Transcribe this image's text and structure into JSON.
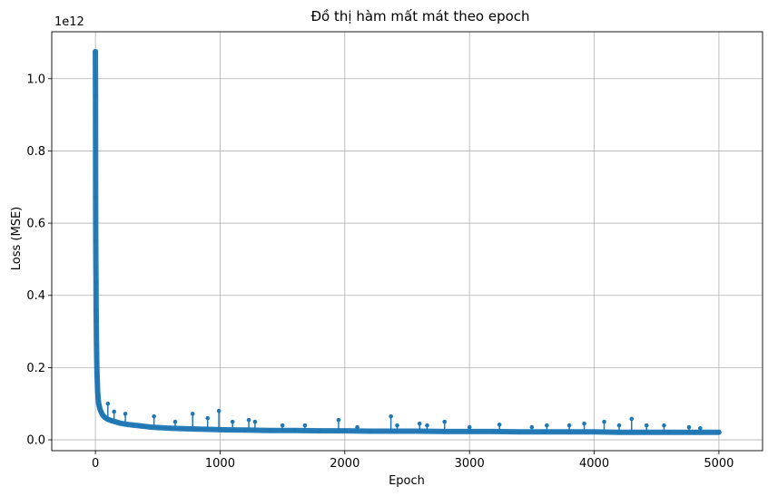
{
  "chart_data": {
    "type": "line",
    "title": "Đồ thị hàm mất mát theo epoch",
    "xlabel": "Epoch",
    "ylabel": "Loss (MSE)",
    "y_offset_label": "1e12",
    "xlim": [
      -350,
      5350
    ],
    "ylim": [
      -0.03,
      1.13
    ],
    "x_ticks": [
      0,
      1000,
      2000,
      3000,
      4000,
      5000
    ],
    "x_tick_labels": [
      "0",
      "1000",
      "2000",
      "3000",
      "4000",
      "5000"
    ],
    "y_ticks": [
      0.0,
      0.2,
      0.4,
      0.6,
      0.8,
      1.0
    ],
    "y_tick_labels": [
      "0.0",
      "0.2",
      "0.4",
      "0.6",
      "0.8",
      "1.0"
    ],
    "grid": true,
    "marker": "circle",
    "series_color": "#1f77b4",
    "series": [
      {
        "x": [
          0,
          1,
          2,
          3,
          4,
          5,
          6,
          7,
          8,
          9,
          10,
          11,
          12,
          13,
          14,
          15,
          16,
          17,
          18,
          20,
          22,
          25,
          28,
          32,
          36,
          40,
          45,
          50,
          60,
          70,
          80,
          100,
          120,
          140,
          160,
          200,
          250,
          300,
          350,
          400,
          450,
          500,
          600,
          700,
          800,
          1000,
          1200,
          1400,
          1600,
          1800,
          2000,
          2200,
          2400,
          2600,
          2800,
          3000,
          3200,
          3400,
          3600,
          3800,
          4000,
          4200,
          4400,
          4600,
          4800,
          5000
        ],
        "y": [
          1.075,
          0.955,
          0.67,
          0.55,
          0.48,
          0.435,
          0.36,
          0.33,
          0.29,
          0.265,
          0.24,
          0.215,
          0.2,
          0.185,
          0.175,
          0.165,
          0.155,
          0.145,
          0.135,
          0.125,
          0.115,
          0.105,
          0.098,
          0.092,
          0.086,
          0.082,
          0.078,
          0.074,
          0.068,
          0.064,
          0.061,
          0.057,
          0.054,
          0.052,
          0.05,
          0.046,
          0.043,
          0.041,
          0.039,
          0.037,
          0.035,
          0.034,
          0.032,
          0.031,
          0.03,
          0.028,
          0.027,
          0.026,
          0.026,
          0.025,
          0.025,
          0.024,
          0.024,
          0.024,
          0.023,
          0.023,
          0.023,
          0.022,
          0.022,
          0.022,
          0.022,
          0.021,
          0.021,
          0.021,
          0.021,
          0.021
        ]
      }
    ],
    "spikes": [
      {
        "x": 100,
        "y": 0.1
      },
      {
        "x": 150,
        "y": 0.078
      },
      {
        "x": 240,
        "y": 0.072
      },
      {
        "x": 470,
        "y": 0.065
      },
      {
        "x": 640,
        "y": 0.05
      },
      {
        "x": 780,
        "y": 0.072
      },
      {
        "x": 900,
        "y": 0.06
      },
      {
        "x": 990,
        "y": 0.08
      },
      {
        "x": 1100,
        "y": 0.05
      },
      {
        "x": 1230,
        "y": 0.055
      },
      {
        "x": 1280,
        "y": 0.05
      },
      {
        "x": 1500,
        "y": 0.04
      },
      {
        "x": 1680,
        "y": 0.04
      },
      {
        "x": 1950,
        "y": 0.055
      },
      {
        "x": 2100,
        "y": 0.035
      },
      {
        "x": 2370,
        "y": 0.065
      },
      {
        "x": 2420,
        "y": 0.04
      },
      {
        "x": 2600,
        "y": 0.045
      },
      {
        "x": 2660,
        "y": 0.04
      },
      {
        "x": 2800,
        "y": 0.05
      },
      {
        "x": 3000,
        "y": 0.035
      },
      {
        "x": 3240,
        "y": 0.042
      },
      {
        "x": 3500,
        "y": 0.035
      },
      {
        "x": 3620,
        "y": 0.04
      },
      {
        "x": 3800,
        "y": 0.04
      },
      {
        "x": 3920,
        "y": 0.045
      },
      {
        "x": 4080,
        "y": 0.05
      },
      {
        "x": 4200,
        "y": 0.04
      },
      {
        "x": 4300,
        "y": 0.058
      },
      {
        "x": 4420,
        "y": 0.04
      },
      {
        "x": 4560,
        "y": 0.04
      },
      {
        "x": 4760,
        "y": 0.035
      },
      {
        "x": 4850,
        "y": 0.032
      }
    ]
  }
}
